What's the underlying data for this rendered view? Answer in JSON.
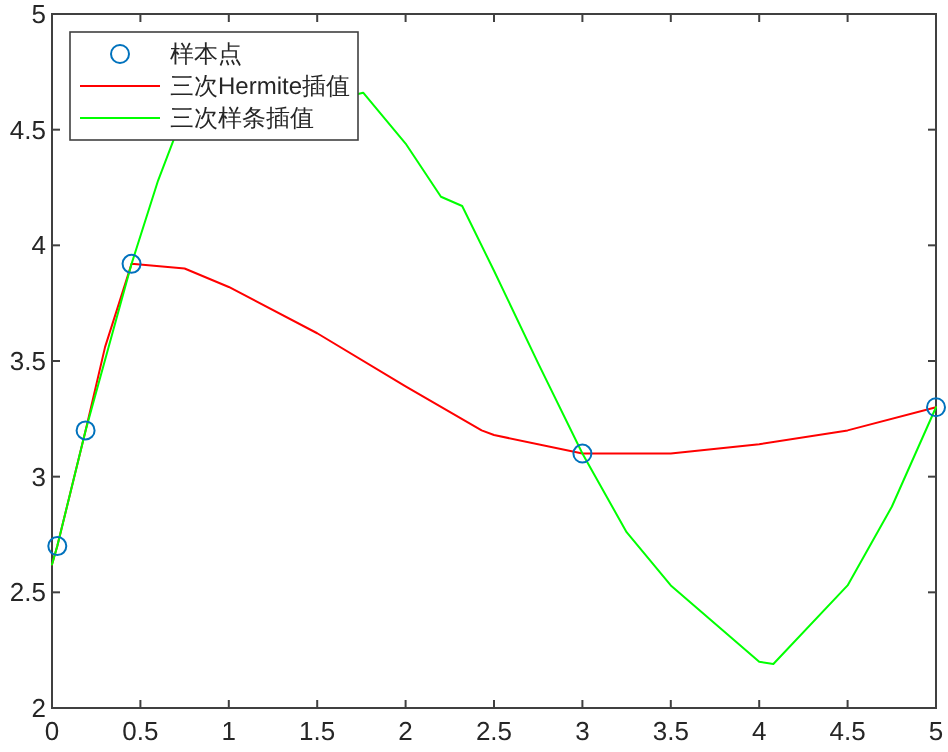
{
  "chart_data": {
    "type": "line",
    "xlim": [
      0,
      5
    ],
    "ylim": [
      2,
      5
    ],
    "xticks": [
      0,
      0.5,
      1,
      1.5,
      2,
      2.5,
      3,
      3.5,
      4,
      4.5,
      5
    ],
    "yticks": [
      2,
      2.5,
      3,
      3.5,
      4,
      4.5,
      5
    ],
    "grid": false,
    "legend": "top left",
    "series": [
      {
        "name": "样本点",
        "type": "scatter",
        "marker": "circle",
        "color": "#0072bd",
        "x": [
          0.03,
          0.19,
          0.45,
          3,
          5
        ],
        "values": [
          2.7,
          3.2,
          3.92,
          3.1,
          3.3
        ]
      },
      {
        "name": "三次Hermite插值",
        "marker": "none",
        "line_style": "solid",
        "color": "#ff0000",
        "x": [
          0,
          0.03,
          0.19,
          0.3,
          0.45,
          0.75,
          1,
          1.5,
          2,
          2.43,
          2.5,
          3,
          3.5,
          4,
          4.5,
          5
        ],
        "values": [
          2.62,
          2.7,
          3.2,
          3.56,
          3.92,
          3.9,
          3.82,
          3.62,
          3.39,
          3.2,
          3.18,
          3.1,
          3.1,
          3.14,
          3.2,
          3.3
        ]
      },
      {
        "name": "三次样条插值",
        "marker": "none",
        "line_style": "solid",
        "color": "#00ff00",
        "x": [
          0,
          0.03,
          0.19,
          0.45,
          0.6,
          0.69,
          1.76,
          2,
          2.2,
          2.32,
          2.5,
          2.75,
          3,
          3.25,
          3.5,
          4,
          4.08,
          4.5,
          4.75,
          5
        ],
        "values": [
          2.62,
          2.7,
          3.2,
          3.92,
          4.28,
          4.46,
          4.66,
          4.44,
          4.21,
          4.17,
          3.89,
          3.49,
          3.1,
          2.76,
          2.53,
          2.2,
          2.19,
          2.53,
          2.87,
          3.3
        ]
      }
    ]
  }
}
